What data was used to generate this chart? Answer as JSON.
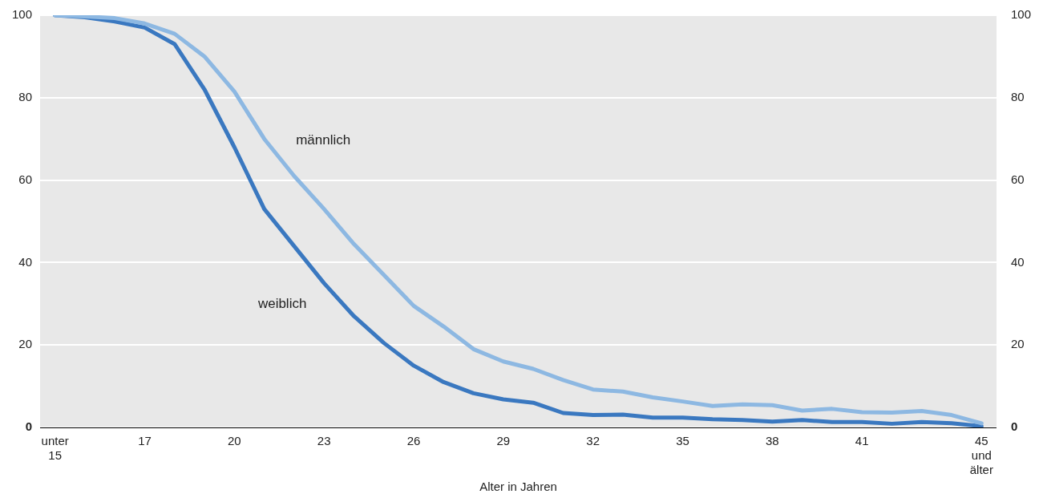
{
  "chart_data": {
    "type": "line",
    "xlabel": "Alter in Jahren",
    "categories": [
      "unter 15",
      null,
      null,
      "17",
      null,
      null,
      "20",
      null,
      null,
      "23",
      null,
      null,
      "26",
      null,
      null,
      "29",
      null,
      null,
      "32",
      null,
      null,
      "35",
      null,
      null,
      "38",
      null,
      null,
      "41",
      null,
      null,
      null,
      "45 und älter"
    ],
    "series": [
      {
        "name": "männlich",
        "color": "#8db8e2",
        "values": [
          100,
          99.7,
          99.3,
          98,
          95.5,
          90,
          81.5,
          70,
          61,
          53,
          44.5,
          37,
          29.5,
          24.5,
          19,
          16,
          14.2,
          11.5,
          9.2,
          8.7,
          7.3,
          6.3,
          5.2,
          5.6,
          5.4,
          4.1,
          4.5,
          3.7,
          3.6,
          4,
          3,
          1
        ]
      },
      {
        "name": "weiblich",
        "color": "#3a78c0",
        "values": [
          100,
          99.5,
          98.5,
          97,
          93,
          82,
          68,
          53,
          44,
          35,
          27,
          20.5,
          15,
          11,
          8.3,
          6.8,
          6,
          3.5,
          3,
          3.1,
          2.4,
          2.4,
          2,
          1.8,
          1.4,
          1.8,
          1.3,
          1.3,
          0.9,
          1.3,
          1,
          0.3
        ]
      }
    ],
    "ylim": [
      0,
      100
    ],
    "yticks": [
      0,
      20,
      40,
      60,
      80,
      100
    ],
    "y2lim": [
      0,
      100
    ],
    "y2ticks": [
      0,
      20,
      40,
      60,
      80,
      100
    ],
    "grid": "y",
    "legend": false,
    "marker": "none",
    "line_style": "solid"
  }
}
